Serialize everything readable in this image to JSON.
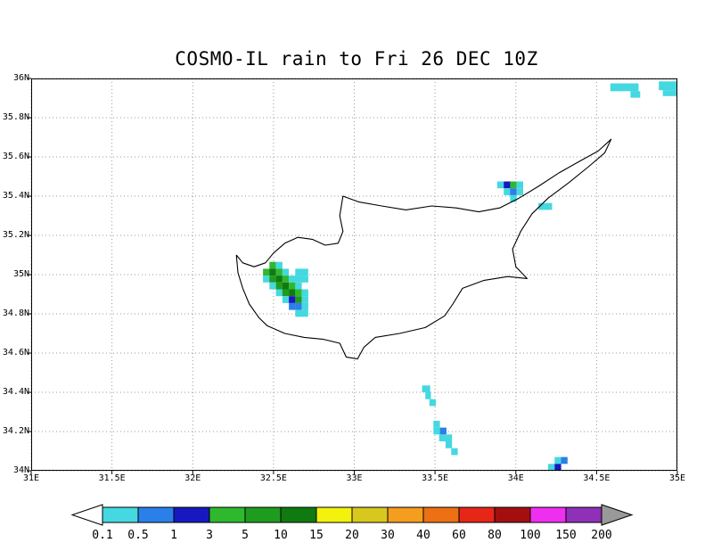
{
  "chart_data": {
    "type": "heatmap",
    "title": "COSMO-IL rain to Fri 26 DEC 10Z",
    "x_axis": {
      "min": 31,
      "max": 35,
      "ticks": [
        {
          "value": 31,
          "label": "31E"
        },
        {
          "value": 31.5,
          "label": "31.5E"
        },
        {
          "value": 32,
          "label": "32E"
        },
        {
          "value": 32.5,
          "label": "32.5E"
        },
        {
          "value": 33,
          "label": "33E"
        },
        {
          "value": 33.5,
          "label": "33.5E"
        },
        {
          "value": 34,
          "label": "34E"
        },
        {
          "value": 34.5,
          "label": "34.5E"
        },
        {
          "value": 35,
          "label": "35E"
        }
      ]
    },
    "y_axis": {
      "min": 34,
      "max": 36,
      "ticks": [
        {
          "value": 36,
          "label": "36N"
        },
        {
          "value": 35.8,
          "label": "35.8N"
        },
        {
          "value": 35.6,
          "label": "35.6N"
        },
        {
          "value": 35.4,
          "label": "35.4N"
        },
        {
          "value": 35.2,
          "label": "35.2N"
        },
        {
          "value": 35,
          "label": "35N"
        },
        {
          "value": 34.8,
          "label": "34.8N"
        },
        {
          "value": 34.6,
          "label": "34.6N"
        },
        {
          "value": 34.4,
          "label": "34.4N"
        },
        {
          "value": 34.2,
          "label": "34.2N"
        },
        {
          "value": 34,
          "label": "34N"
        }
      ]
    },
    "grid": true,
    "grid_color": "#999999",
    "palette": {
      "0.1": "#45D8E0",
      "0.5": "#2B7FE8",
      "1": "#1818C0",
      "3": "#2EB82E",
      "5": "#1E9C1E",
      "10": "#0F7A0F",
      "15": "#F2F20C",
      "20": "#D8C81E",
      "30": "#F59D1E",
      "40": "#ED7014",
      "60": "#E62617",
      "80": "#A30F0F",
      "100": "#EF2FEF",
      "150": "#8E30B8"
    },
    "legend": {
      "labels": [
        "0.1",
        "0.5",
        "1",
        "3",
        "5",
        "10",
        "15",
        "20",
        "30",
        "40",
        "60",
        "80",
        "100",
        "150",
        "200"
      ],
      "segment_levels": [
        "0.1",
        "0.5",
        "1",
        "3",
        "5",
        "10",
        "15",
        "20",
        "30",
        "40",
        "60",
        "80",
        "100",
        "150"
      ],
      "left_arrow_color": "#FFFFFF",
      "right_arrow_color": "#999999"
    },
    "coastline": [
      [
        32.27,
        35.1
      ],
      [
        32.31,
        35.06
      ],
      [
        32.38,
        35.04
      ],
      [
        32.45,
        35.06
      ],
      [
        32.5,
        35.11
      ],
      [
        32.57,
        35.16
      ],
      [
        32.65,
        35.19
      ],
      [
        32.74,
        35.18
      ],
      [
        32.82,
        35.15
      ],
      [
        32.9,
        35.16
      ],
      [
        32.93,
        35.22
      ],
      [
        32.91,
        35.3
      ],
      [
        32.93,
        35.4
      ],
      [
        33.03,
        35.37
      ],
      [
        33.17,
        35.35
      ],
      [
        33.32,
        35.33
      ],
      [
        33.48,
        35.35
      ],
      [
        33.63,
        35.34
      ],
      [
        33.77,
        35.32
      ],
      [
        33.9,
        35.34
      ],
      [
        34.02,
        35.39
      ],
      [
        34.14,
        35.45
      ],
      [
        34.27,
        35.52
      ],
      [
        34.4,
        35.58
      ],
      [
        34.51,
        35.63
      ],
      [
        34.59,
        35.69
      ],
      [
        34.55,
        35.62
      ],
      [
        34.45,
        35.55
      ],
      [
        34.33,
        35.47
      ],
      [
        34.2,
        35.39
      ],
      [
        34.1,
        35.31
      ],
      [
        34.03,
        35.22
      ],
      [
        33.98,
        35.13
      ],
      [
        34.0,
        35.04
      ],
      [
        34.07,
        34.98
      ],
      [
        33.95,
        34.99
      ],
      [
        33.8,
        34.97
      ],
      [
        33.67,
        34.93
      ],
      [
        33.61,
        34.85
      ],
      [
        33.56,
        34.79
      ],
      [
        33.44,
        34.73
      ],
      [
        33.28,
        34.7
      ],
      [
        33.13,
        34.68
      ],
      [
        33.06,
        34.63
      ],
      [
        33.02,
        34.57
      ],
      [
        32.95,
        34.58
      ],
      [
        32.91,
        34.65
      ],
      [
        32.81,
        34.67
      ],
      [
        32.69,
        34.68
      ],
      [
        32.57,
        34.7
      ],
      [
        32.46,
        34.74
      ],
      [
        32.41,
        34.78
      ],
      [
        32.35,
        34.85
      ],
      [
        32.31,
        34.93
      ],
      [
        32.28,
        35.01
      ],
      [
        32.27,
        35.1
      ]
    ],
    "cells": [
      {
        "lon": 34.585,
        "lat": 35.975,
        "w": 0.175,
        "h": 0.04,
        "level": "0.1"
      },
      {
        "lon": 34.71,
        "lat": 35.935,
        "w": 0.06,
        "h": 0.033,
        "level": "0.1"
      },
      {
        "lon": 34.885,
        "lat": 35.985,
        "w": 0.115,
        "h": 0.045,
        "level": "0.1"
      },
      {
        "lon": 34.91,
        "lat": 35.94,
        "w": 0.09,
        "h": 0.03,
        "level": "0.1"
      },
      {
        "lon": 33.885,
        "lat": 35.475,
        "w": 0.04,
        "h": 0.035,
        "level": "0.1"
      },
      {
        "lon": 33.925,
        "lat": 35.475,
        "w": 0.04,
        "h": 0.035,
        "level": "1"
      },
      {
        "lon": 33.965,
        "lat": 35.475,
        "w": 0.04,
        "h": 0.035,
        "level": "3"
      },
      {
        "lon": 34.005,
        "lat": 35.475,
        "w": 0.04,
        "h": 0.035,
        "level": "0.1"
      },
      {
        "lon": 33.925,
        "lat": 35.44,
        "w": 0.04,
        "h": 0.035,
        "level": "0.1"
      },
      {
        "lon": 33.965,
        "lat": 35.44,
        "w": 0.04,
        "h": 0.035,
        "level": "0.5"
      },
      {
        "lon": 34.005,
        "lat": 35.44,
        "w": 0.04,
        "h": 0.035,
        "level": "0.1"
      },
      {
        "lon": 33.965,
        "lat": 35.405,
        "w": 0.04,
        "h": 0.035,
        "level": "0.1"
      },
      {
        "lon": 34.14,
        "lat": 35.365,
        "w": 0.085,
        "h": 0.035,
        "level": "0.1"
      },
      {
        "lon": 32.475,
        "lat": 35.065,
        "w": 0.04,
        "h": 0.035,
        "level": "3"
      },
      {
        "lon": 32.515,
        "lat": 35.065,
        "w": 0.04,
        "h": 0.035,
        "level": "0.1"
      },
      {
        "lon": 32.435,
        "lat": 35.03,
        "w": 0.04,
        "h": 0.035,
        "level": "3"
      },
      {
        "lon": 32.475,
        "lat": 35.03,
        "w": 0.04,
        "h": 0.035,
        "level": "10"
      },
      {
        "lon": 32.515,
        "lat": 35.03,
        "w": 0.04,
        "h": 0.035,
        "level": "3"
      },
      {
        "lon": 32.555,
        "lat": 35.03,
        "w": 0.04,
        "h": 0.035,
        "level": "0.1"
      },
      {
        "lon": 32.635,
        "lat": 35.03,
        "w": 0.08,
        "h": 0.035,
        "level": "0.1"
      },
      {
        "lon": 32.435,
        "lat": 34.995,
        "w": 0.04,
        "h": 0.035,
        "level": "0.1"
      },
      {
        "lon": 32.475,
        "lat": 34.995,
        "w": 0.04,
        "h": 0.035,
        "level": "5"
      },
      {
        "lon": 32.515,
        "lat": 34.995,
        "w": 0.04,
        "h": 0.035,
        "level": "10"
      },
      {
        "lon": 32.555,
        "lat": 34.995,
        "w": 0.04,
        "h": 0.035,
        "level": "3"
      },
      {
        "lon": 32.595,
        "lat": 34.995,
        "w": 0.12,
        "h": 0.035,
        "level": "0.1"
      },
      {
        "lon": 32.475,
        "lat": 34.96,
        "w": 0.04,
        "h": 0.035,
        "level": "0.1"
      },
      {
        "lon": 32.515,
        "lat": 34.96,
        "w": 0.04,
        "h": 0.035,
        "level": "5"
      },
      {
        "lon": 32.555,
        "lat": 34.96,
        "w": 0.04,
        "h": 0.035,
        "level": "10"
      },
      {
        "lon": 32.595,
        "lat": 34.96,
        "w": 0.04,
        "h": 0.035,
        "level": "3"
      },
      {
        "lon": 32.635,
        "lat": 34.96,
        "w": 0.04,
        "h": 0.035,
        "level": "0.1"
      },
      {
        "lon": 32.515,
        "lat": 34.925,
        "w": 0.04,
        "h": 0.035,
        "level": "0.1"
      },
      {
        "lon": 32.555,
        "lat": 34.925,
        "w": 0.04,
        "h": 0.035,
        "level": "5"
      },
      {
        "lon": 32.595,
        "lat": 34.925,
        "w": 0.04,
        "h": 0.035,
        "level": "10"
      },
      {
        "lon": 32.635,
        "lat": 34.925,
        "w": 0.04,
        "h": 0.035,
        "level": "3"
      },
      {
        "lon": 32.675,
        "lat": 34.925,
        "w": 0.04,
        "h": 0.035,
        "level": "0.1"
      },
      {
        "lon": 32.555,
        "lat": 34.89,
        "w": 0.04,
        "h": 0.035,
        "level": "0.1"
      },
      {
        "lon": 32.595,
        "lat": 34.89,
        "w": 0.04,
        "h": 0.035,
        "level": "1"
      },
      {
        "lon": 32.635,
        "lat": 34.89,
        "w": 0.04,
        "h": 0.035,
        "level": "5"
      },
      {
        "lon": 32.675,
        "lat": 34.89,
        "w": 0.04,
        "h": 0.035,
        "level": "0.1"
      },
      {
        "lon": 32.595,
        "lat": 34.855,
        "w": 0.04,
        "h": 0.035,
        "level": "0.5"
      },
      {
        "lon": 32.635,
        "lat": 34.855,
        "w": 0.04,
        "h": 0.035,
        "level": "0.5"
      },
      {
        "lon": 32.675,
        "lat": 34.855,
        "w": 0.04,
        "h": 0.035,
        "level": "0.1"
      },
      {
        "lon": 32.635,
        "lat": 34.82,
        "w": 0.08,
        "h": 0.035,
        "level": "0.1"
      },
      {
        "lon": 33.42,
        "lat": 34.435,
        "w": 0.05,
        "h": 0.035,
        "level": "0.1"
      },
      {
        "lon": 33.44,
        "lat": 34.4,
        "w": 0.035,
        "h": 0.035,
        "level": "0.1"
      },
      {
        "lon": 33.465,
        "lat": 34.365,
        "w": 0.04,
        "h": 0.035,
        "level": "0.1"
      },
      {
        "lon": 33.49,
        "lat": 34.255,
        "w": 0.04,
        "h": 0.035,
        "level": "0.1"
      },
      {
        "lon": 33.49,
        "lat": 34.22,
        "w": 0.04,
        "h": 0.035,
        "level": "0.1"
      },
      {
        "lon": 33.53,
        "lat": 34.22,
        "w": 0.04,
        "h": 0.035,
        "level": "0.5"
      },
      {
        "lon": 33.525,
        "lat": 34.185,
        "w": 0.08,
        "h": 0.035,
        "level": "0.1"
      },
      {
        "lon": 33.565,
        "lat": 34.15,
        "w": 0.04,
        "h": 0.035,
        "level": "0.1"
      },
      {
        "lon": 33.6,
        "lat": 34.115,
        "w": 0.04,
        "h": 0.035,
        "level": "0.1"
      },
      {
        "lon": 34.24,
        "lat": 34.07,
        "w": 0.04,
        "h": 0.035,
        "level": "0.1"
      },
      {
        "lon": 34.28,
        "lat": 34.07,
        "w": 0.04,
        "h": 0.035,
        "level": "0.5"
      },
      {
        "lon": 34.2,
        "lat": 34.035,
        "w": 0.04,
        "h": 0.035,
        "level": "0.1"
      },
      {
        "lon": 34.24,
        "lat": 34.035,
        "w": 0.04,
        "h": 0.035,
        "level": "1"
      }
    ]
  }
}
